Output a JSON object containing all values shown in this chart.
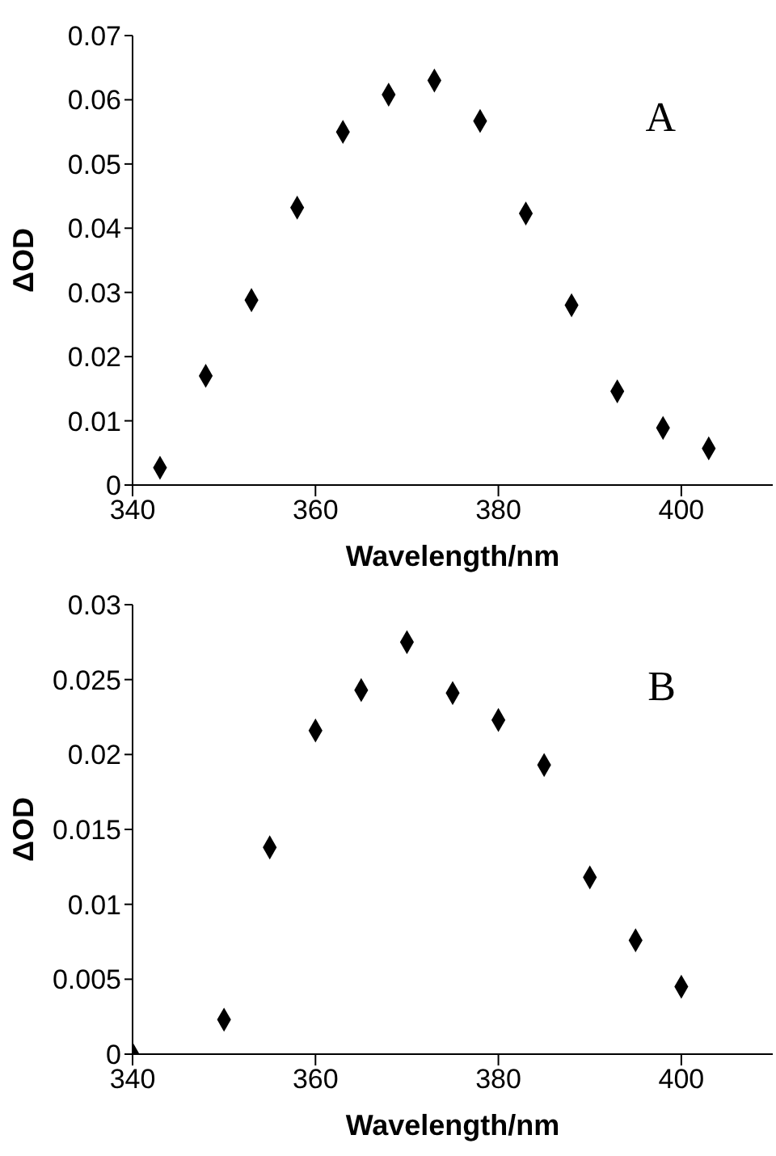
{
  "chart_data": [
    {
      "type": "scatter",
      "xlabel": "Wavelength/nm",
      "ylabel": "ΔOD",
      "annotations": [
        "A"
      ],
      "marker": "diamond",
      "grid": false,
      "legend": false,
      "x": [
        343,
        348,
        353,
        358,
        363,
        368,
        373,
        378,
        383,
        388,
        393,
        398,
        403
      ],
      "series": [
        {
          "color": "#000000",
          "values": [
            0.0027,
            0.017,
            0.0288,
            0.0432,
            0.055,
            0.0608,
            0.063,
            0.0567,
            0.0423,
            0.028,
            0.0146,
            0.0089,
            0.0057
          ]
        }
      ],
      "xlim": [
        340,
        410
      ],
      "xticks": [
        340,
        360,
        380,
        400
      ],
      "ylim": [
        0,
        0.07
      ],
      "yticks": [
        0,
        0.01,
        0.02,
        0.03,
        0.04,
        0.05,
        0.06,
        0.07
      ]
    },
    {
      "type": "scatter",
      "xlabel": "Wavelength/nm",
      "ylabel": "ΔOD",
      "annotations": [
        "B"
      ],
      "marker": "diamond",
      "grid": false,
      "legend": false,
      "x": [
        340,
        350,
        355,
        360,
        365,
        370,
        375,
        380,
        385,
        390,
        395,
        400
      ],
      "series": [
        {
          "color": "#000000",
          "values": [
            0,
            0.0023,
            0.0138,
            0.0216,
            0.0243,
            0.0275,
            0.0241,
            0.0223,
            0.0193,
            0.0118,
            0.0076,
            0.0045
          ]
        }
      ],
      "xlim": [
        340,
        410
      ],
      "xticks": [
        340,
        360,
        380,
        400
      ],
      "ylim": [
        0,
        0.03
      ],
      "yticks": [
        0,
        0.005,
        0.01,
        0.015,
        0.02,
        0.025,
        0.03
      ]
    }
  ]
}
